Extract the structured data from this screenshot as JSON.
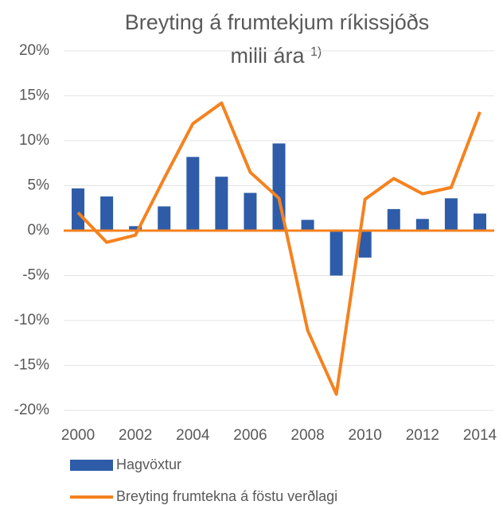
{
  "chart_data": {
    "type": "bar_line",
    "title_lines": [
      "Breyting á frumtekjum ríkissjóðs",
      "milli ára"
    ],
    "title_note": "1)",
    "categories": [
      "2000",
      null,
      "2002",
      null,
      "2004",
      null,
      "2006",
      null,
      "2008",
      null,
      "2010",
      null,
      "2012",
      null,
      "2014"
    ],
    "series": [
      {
        "name": "Hagvöxtur",
        "type": "bar",
        "color": "#2e5ca8",
        "values": [
          4.7,
          3.8,
          0.5,
          2.7,
          8.2,
          6.0,
          4.2,
          9.7,
          1.2,
          -5.0,
          -3.0,
          2.4,
          1.3,
          3.6,
          1.9
        ]
      },
      {
        "name": "Breyting frumtekna á föstu verðlagi",
        "type": "line",
        "color": "#f5821f",
        "values": [
          2.0,
          -1.3,
          -0.5,
          5.8,
          11.9,
          14.2,
          6.5,
          3.6,
          -11.1,
          -18.2,
          3.5,
          5.8,
          4.1,
          4.8,
          13.2
        ]
      }
    ],
    "ylim": [
      -20,
      20
    ],
    "yticks": [
      {
        "value": -20,
        "label": "-20%"
      },
      {
        "value": -15,
        "label": "-15%"
      },
      {
        "value": -10,
        "label": "-10%"
      },
      {
        "value": -5,
        "label": "-5%"
      },
      {
        "value": 0,
        "label": "0%"
      },
      {
        "value": 5,
        "label": "5%"
      },
      {
        "value": 10,
        "label": "10%"
      },
      {
        "value": 15,
        "label": "15%"
      },
      {
        "value": 20,
        "label": "20%"
      }
    ],
    "grid": true,
    "legend": "bottom"
  }
}
